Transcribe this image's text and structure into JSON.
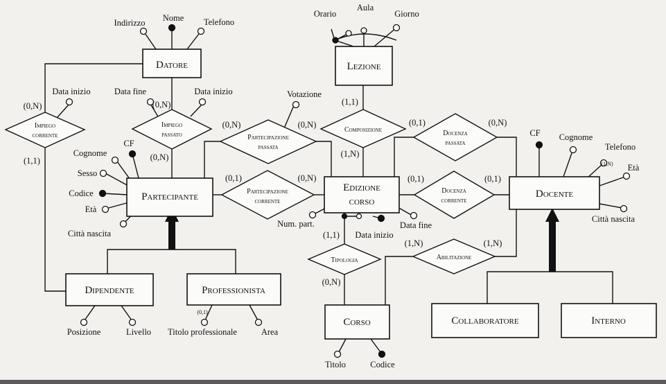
{
  "entities": {
    "datore": "Datore",
    "lezione": "Lezione",
    "partecipante": "Partecipante",
    "edizione_corso_line1": "Edizione",
    "edizione_corso_line2": "corso",
    "docente": "Docente",
    "dipendente": "Dipendente",
    "professionista": "Professionista",
    "corso": "Corso",
    "collaboratore": "Collaboratore",
    "interno": "Interno"
  },
  "relationships": {
    "impiego_corrente": [
      "Impiego",
      "corrente"
    ],
    "impiego_passato": [
      "Impiego",
      "passato"
    ],
    "partecipazione_passata": [
      "Partecipazione",
      "passata"
    ],
    "partecipazione_corrente": [
      "Partecipazione",
      "corrente"
    ],
    "composizione": [
      "Composizione"
    ],
    "docenza_passata": [
      "Docenza",
      "passata"
    ],
    "docenza_corrente": [
      "Docenza",
      "corrente"
    ],
    "tipologia": [
      "Tipologia"
    ],
    "abilitazione": [
      "Abilitazione"
    ]
  },
  "attributes": {
    "datore_indirizzo": "Indirizzo",
    "datore_nome": "Nome",
    "datore_telefono": "Telefono",
    "lezione_orario": "Orario",
    "lezione_aula": "Aula",
    "lezione_giorno": "Giorno",
    "impiego_corrente_data_inizio": "Data inizio",
    "impiego_passato_data_fine": "Data fine",
    "impiego_passato_data_inizio": "Data inizio",
    "partecipazione_passata_votazione": "Votazione",
    "partecipante_cognome": "Cognome",
    "partecipante_cf": "CF",
    "partecipante_sesso": "Sesso",
    "partecipante_codice": "Codice",
    "partecipante_eta": "Età",
    "partecipante_citta_nascita": "Città nascita",
    "edizione_num_part": "Num. part.",
    "edizione_data_inizio": "Data inizio",
    "edizione_data_fine": "Data fine",
    "docente_cf": "CF",
    "docente_cognome": "Cognome",
    "docente_telefono": "Telefono",
    "docente_eta": "Età",
    "docente_citta_nascita": "Città nascita",
    "dipendente_posizione": "Posizione",
    "dipendente_livello": "Livello",
    "professionista_titolo": "Titolo professionale",
    "professionista_area": "Area",
    "corso_titolo": "Titolo",
    "corso_codice": "Codice"
  },
  "cardinalities": {
    "impiego_corrente_datore": "(0,N)",
    "impiego_corrente_partecipante": "(1,1)",
    "impiego_passato_datore": "(0,N)",
    "impiego_passato_partecipante": "(0,N)",
    "part_passata_partecipante": "(0,N)",
    "part_passata_edizione": "(0,N)",
    "part_corrente_partecipante": "(0,1)",
    "part_corrente_edizione": "(0,N)",
    "composizione_lezione": "(1,1)",
    "composizione_edizione": "(1,N)",
    "doc_passata_edizione": "(0,1)",
    "doc_passata_docente": "(0,N)",
    "doc_corrente_edizione": "(0,1)",
    "doc_corrente_docente": "(0,1)",
    "tipologia_edizione": "(1,1)",
    "tipologia_corso": "(0,N)",
    "abilitazione_corso": "(1,N)",
    "abilitazione_docente": "(1,N)",
    "telefono_card": "(1,N)",
    "titolo_professionale_card": "(0,1)"
  }
}
